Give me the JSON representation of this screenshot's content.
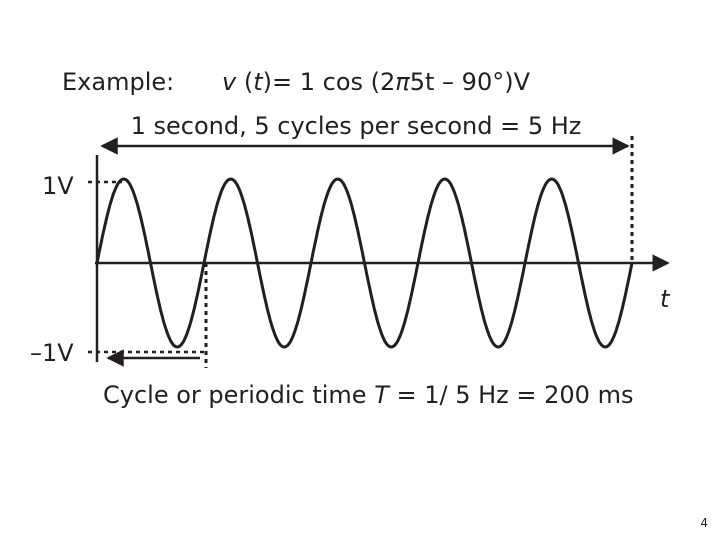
{
  "example_label": "Example:",
  "formula": [
    "v",
    " (",
    "t",
    ")= 1 cos (2",
    "π",
    "5t – 90°)V"
  ],
  "span_caption": "1 second, 5 cycles per second = 5 Hz",
  "y_top_label": "1V",
  "y_bottom_label": "–1V",
  "time_axis_label": "t",
  "period_caption": [
    "Cycle or periodic time ",
    "T",
    " = 1/ 5 Hz = 200 ms"
  ],
  "page_number": "4"
}
